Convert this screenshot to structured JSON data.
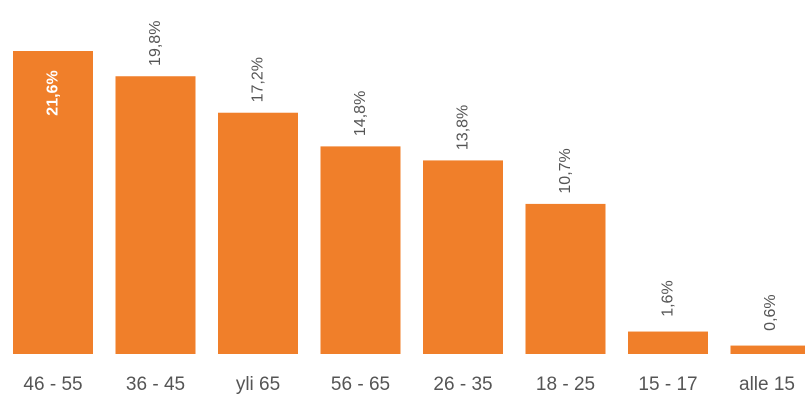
{
  "chart_data": {
    "type": "bar",
    "title": "",
    "xlabel": "",
    "ylabel": "",
    "categories": [
      "46 - 55",
      "36 - 45",
      "yli 65",
      "56 - 65",
      "26 - 35",
      "18 - 25",
      "15 - 17",
      "alle 15"
    ],
    "values": [
      21.6,
      19.8,
      17.2,
      14.8,
      13.8,
      10.7,
      1.6,
      0.6
    ],
    "data_labels": [
      "21,6%",
      "19,8%",
      "17,2%",
      "14,8%",
      "13,8%",
      "10,7%",
      "1,6%",
      "0,6%"
    ],
    "ylim": [
      0,
      21.6
    ],
    "grid": false,
    "legend": "none",
    "bar_color": "#f07f2a",
    "text_color": "#555555"
  }
}
